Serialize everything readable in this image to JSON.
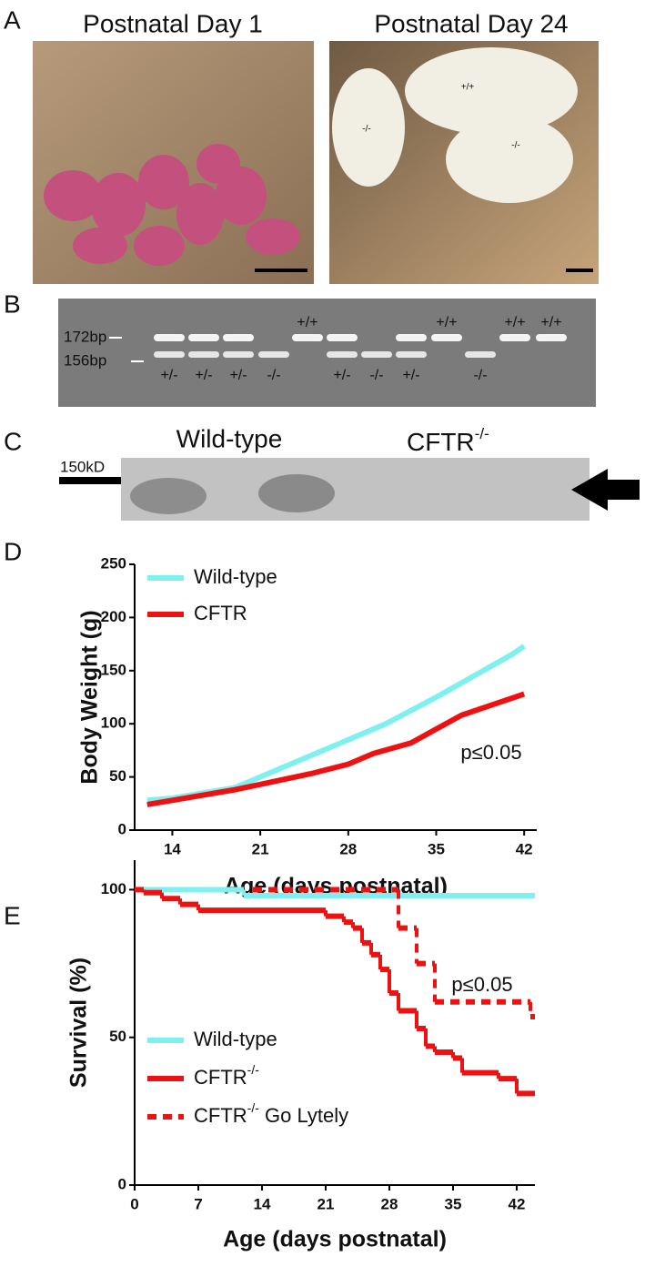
{
  "panel_labels": [
    "A",
    "B",
    "C",
    "D",
    "E"
  ],
  "photos": {
    "day1": {
      "title": "Postnatal Day 1"
    },
    "day24": {
      "title": "Postnatal Day 24",
      "labels": [
        "-/-",
        "+/+",
        "-/-"
      ]
    }
  },
  "gel": {
    "markers": [
      "172bp",
      "156bp"
    ],
    "lanes": [
      "+/-",
      "+/-",
      "+/-",
      "-/-",
      "+/+",
      "+/-",
      "-/-",
      "+/-",
      "+/+",
      "-/-",
      "+/+",
      "+/+"
    ]
  },
  "western": {
    "marker": "150kD",
    "wild_type": "Wild-type",
    "mutant": "CFTR",
    "mutant_sup": "-/-"
  },
  "chart_data": [
    {
      "type": "line",
      "ylabel": "Body Weight  (g)",
      "xlabel": "Age (days postnatal)",
      "annotation": "p≤0.05",
      "xlim": [
        11,
        43
      ],
      "xticks": [
        14,
        21,
        28,
        35,
        42
      ],
      "ylim": [
        0,
        250
      ],
      "yticks": [
        0,
        50,
        100,
        150,
        200,
        250
      ],
      "series": [
        {
          "name": "Wild-type",
          "color": "#7ff0f0",
          "x": [
            12,
            14,
            19,
            21,
            25,
            28,
            31,
            35,
            38,
            41,
            42
          ],
          "values": [
            28,
            30,
            40,
            50,
            70,
            85,
            100,
            125,
            145,
            165,
            173
          ]
        },
        {
          "name": "CFTR",
          "color": "#ee1111",
          "x": [
            12,
            14,
            19,
            21,
            25,
            28,
            30,
            33,
            35,
            37,
            40,
            42
          ],
          "values": [
            24,
            28,
            38,
            43,
            53,
            62,
            72,
            82,
            95,
            108,
            120,
            128
          ]
        }
      ]
    },
    {
      "type": "step",
      "ylabel": "Survival (%)",
      "xlabel": "Age (days postnatal)",
      "annotation": "p≤0.05",
      "xlim": [
        0,
        44
      ],
      "xticks": [
        0,
        7,
        14,
        21,
        28,
        35,
        42
      ],
      "ylim": [
        0,
        110
      ],
      "yticks": [
        0,
        50,
        100
      ],
      "series": [
        {
          "name": "Wild-type",
          "color": "#7ff0f0",
          "dash": false,
          "x": [
            0,
            12
          ],
          "values": [
            100,
            98
          ]
        },
        {
          "name": "CFTR",
          "name_sup": "-/-",
          "color": "#ee1111",
          "dash": false,
          "x": [
            0,
            1,
            3,
            5,
            7,
            21,
            23,
            24,
            25,
            26,
            27,
            28,
            29,
            31,
            32,
            33,
            35,
            36,
            40,
            42
          ],
          "values": [
            100,
            99,
            97,
            95,
            93,
            91,
            89,
            87,
            82,
            78,
            73,
            65,
            59,
            53,
            47,
            45,
            43,
            38,
            36,
            31
          ]
        },
        {
          "name": "CFTR",
          "name_sup": "-/-",
          "name_tail": " Go Lytely",
          "color": "#ee1111",
          "dash": true,
          "x": [
            13,
            29,
            31,
            33,
            43.5
          ],
          "values": [
            100,
            87,
            75,
            62,
            57
          ]
        }
      ]
    }
  ]
}
